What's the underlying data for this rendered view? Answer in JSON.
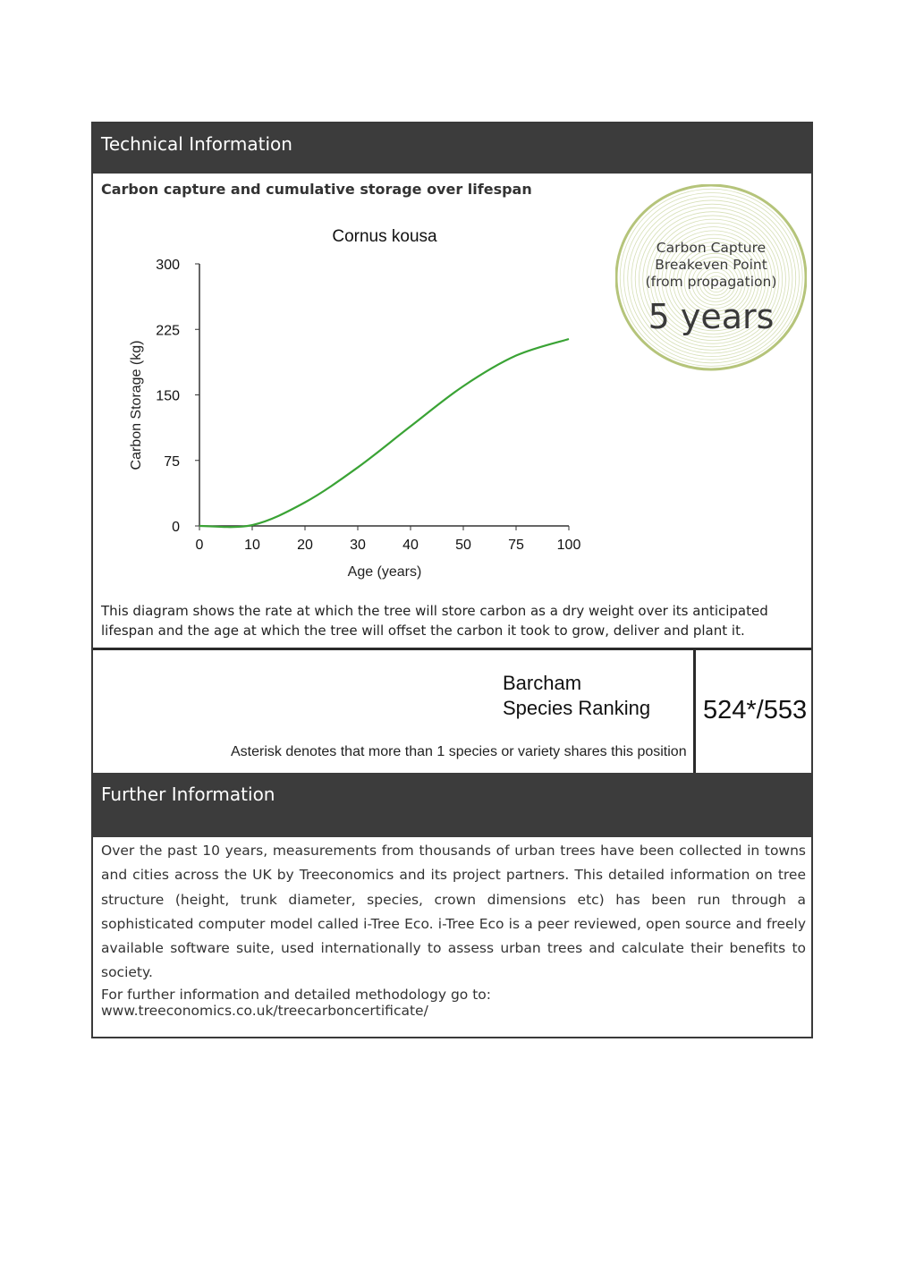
{
  "technical": {
    "header": "Technical Information",
    "subtitle": "Carbon capture and cumulative storage over lifespan",
    "description": "This diagram shows the rate at which the tree will store carbon as a dry weight over its anticipated lifespan and the age at which the tree will offset the carbon it took to grow, deliver and plant it."
  },
  "badge": {
    "line1": "Carbon Capture",
    "line2": "Breakeven Point",
    "line3": "(from propagation)",
    "value": "5 years",
    "color": "#b5c47a"
  },
  "chart_data": {
    "type": "line",
    "title": "Cornus kousa",
    "xlabel": "Age (years)",
    "ylabel": "Carbon Storage (kg)",
    "categories": [
      "0",
      "10",
      "20",
      "30",
      "40",
      "50",
      "75",
      "100"
    ],
    "yticks": [
      "0",
      "75",
      "150",
      "225",
      "300"
    ],
    "ylim": [
      0,
      300
    ],
    "grid": false,
    "series": [
      {
        "values": [
          0,
          1,
          27,
          67,
          114,
          160,
          195,
          214
        ],
        "color": "#3aa335"
      }
    ]
  },
  "ranking": {
    "label_line1": "Barcham",
    "label_line2": "Species Ranking",
    "value": "524*/553",
    "note": "Asterisk denotes that more than 1 species or variety shares this position"
  },
  "further": {
    "header": "Further Information",
    "body": "Over the past 10 years, measurements from thousands of urban trees have been collected in towns and cities across the UK by Treeconomics and its project partners. This detailed information on tree structure (height, trunk diameter, species, crown dimensions etc) has been run through a sophisticated computer model called i-Tree Eco. i-Tree Eco is a peer reviewed, open source and freely available software suite, used internationally to assess urban trees and calculate their benefits to society.",
    "link_text": "For further information and detailed methodology go to: www.treeconomics.co.uk/treecarboncertificate/"
  }
}
